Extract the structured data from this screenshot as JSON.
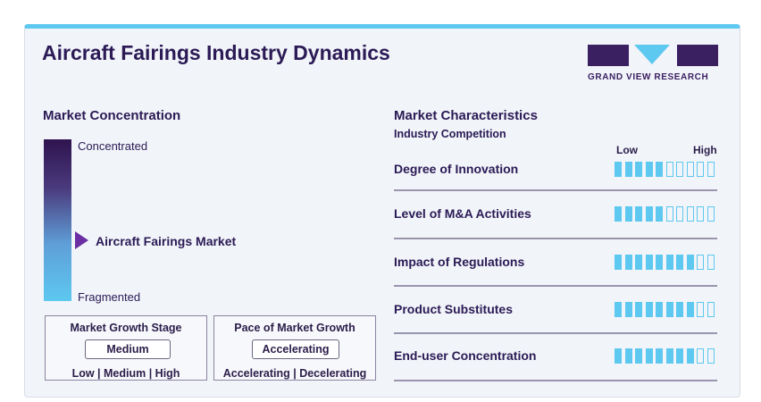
{
  "title": "Aircraft Fairings Industry Dynamics",
  "logo": {
    "text": "GRAND VIEW RESEARCH"
  },
  "concentration": {
    "heading": "Market Concentration",
    "top_label": "Concentrated",
    "bottom_label": "Fragmented",
    "marker_label": "Aircraft Fairings Market"
  },
  "growth_stage": {
    "heading": "Market Growth Stage",
    "value": "Medium",
    "options": "Low | Medium | High"
  },
  "pace": {
    "heading": "Pace of Market Growth",
    "value": "Accelerating",
    "options": "Accelerating | Decelerating"
  },
  "characteristics": {
    "heading": "Market Characteristics",
    "subheading": "Industry Competition",
    "low_label": "Low",
    "high_label": "High",
    "rows": [
      {
        "label": "Degree of Innovation",
        "level": 5,
        "max": 10
      },
      {
        "label": "Level of M&A Activities",
        "level": 5,
        "max": 10
      },
      {
        "label": "Impact of Regulations",
        "level": 8,
        "max": 10
      },
      {
        "label": "Product Substitutes",
        "level": 8,
        "max": 10
      },
      {
        "label": "End-user Concentration",
        "level": 8,
        "max": 10
      }
    ]
  },
  "colors": {
    "accent": "#5dc8f0",
    "brand": "#3a1f61",
    "marker": "#6b2fa3"
  }
}
